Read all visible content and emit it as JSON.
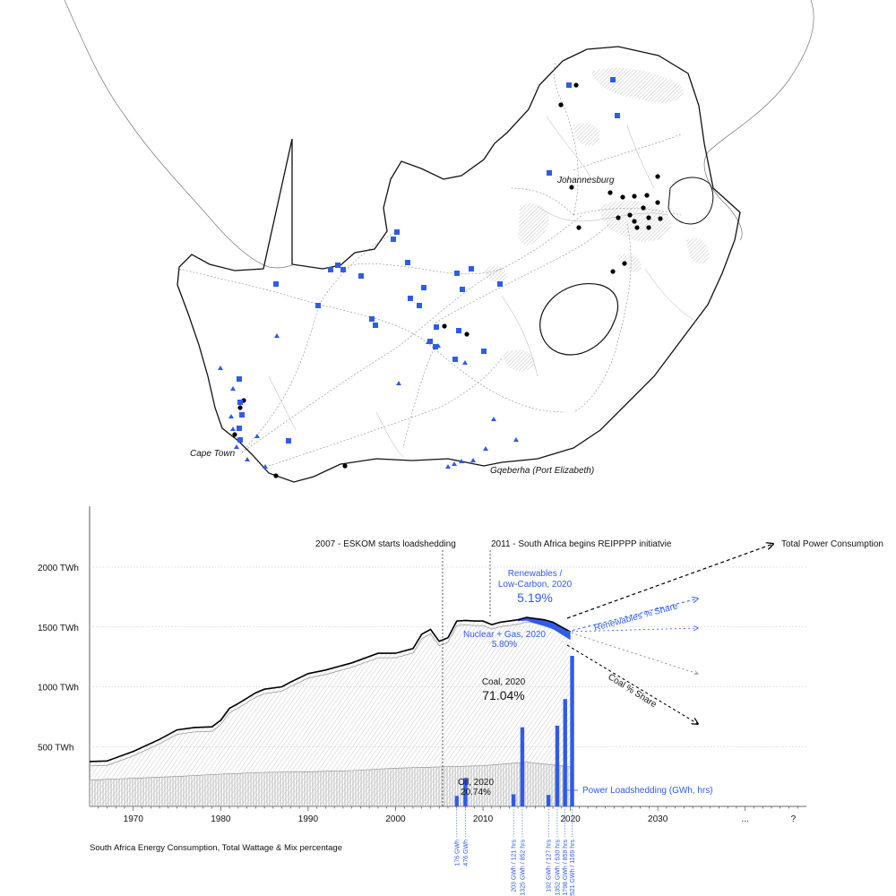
{
  "map": {
    "cities": [
      "Johannesburg",
      "Cape Town",
      "Gqeberha (Port Elizabeth)"
    ],
    "legend_symbols": {
      "coal_or_thermal_plant": "black-dot",
      "solar_or_pv_site": "blue-square",
      "wind_site": "blue-triangle"
    },
    "colors": {
      "border": "#111111",
      "plant": "#000000",
      "renewable": "#2f5be8",
      "roads": "#8a8a8a",
      "mining_hatch": "#bbbbbb"
    }
  },
  "chart_data": {
    "type": "area",
    "caption": "South Africa Energy Consumption, Total Wattage & Mix percentage",
    "y_ticks": [
      "2000 TWh",
      "1500 TWh",
      "1000 TWh",
      "500 TWh"
    ],
    "y_tick_values": [
      2000,
      1500,
      1000,
      500
    ],
    "x_ticks": [
      "1970",
      "1980",
      "1990",
      "2000",
      "2010",
      "2020",
      "2030",
      "...",
      "?"
    ],
    "xlim": [
      1965,
      2047
    ],
    "ylim": [
      0,
      2500
    ],
    "total_consumption": {
      "x": [
        1965,
        1967,
        1970,
        1973,
        1975,
        1977,
        1979,
        1980,
        1981,
        1982,
        1984,
        1985,
        1987,
        1988,
        1990,
        1992,
        1995,
        1998,
        2000,
        2002,
        2003,
        2004,
        2005,
        2006,
        2007,
        2008,
        2009,
        2010,
        2011,
        2012,
        2013,
        2014,
        2015,
        2016,
        2017,
        2018,
        2019,
        2020
      ],
      "y": [
        375,
        380,
        460,
        560,
        640,
        660,
        665,
        720,
        820,
        860,
        950,
        980,
        1000,
        1040,
        1110,
        1140,
        1200,
        1280,
        1280,
        1320,
        1440,
        1480,
        1380,
        1410,
        1550,
        1555,
        1550,
        1550,
        1520,
        1540,
        1550,
        1560,
        1580,
        1570,
        1560,
        1540,
        1500,
        1460
      ]
    },
    "oil_band": {
      "x": [
        1965,
        1970,
        1975,
        1980,
        1985,
        1990,
        1995,
        2000,
        2005,
        2010,
        2015,
        2020
      ],
      "y": [
        220,
        235,
        250,
        270,
        285,
        290,
        300,
        320,
        330,
        340,
        370,
        330
      ]
    },
    "annotations": [
      {
        "year": 2006,
        "text": "2007 - ESKOM starts loadshedding"
      },
      {
        "year": 2011,
        "text": "2011 - South Africa begins REIPPPP initiatvie"
      }
    ],
    "mix_labels": {
      "renewables_title": "Renewables /",
      "renewables_title2": "Low-Carbon, 2020",
      "renewables_value": "5.19%",
      "nuclear_title": "Nuclear + Gas, 2020",
      "nuclear_value": "5.80%",
      "coal_title": "Coal, 2020",
      "coal_value": "71.04%",
      "oil_title": "Oil, 2020",
      "oil_value": "20.74%"
    },
    "projection_labels": {
      "total": "Total Power Consumption",
      "renewables": "Renewables % Share",
      "coal": "Coal % Share"
    },
    "loadshedding": {
      "label": "Power Loadshedding (GWh, hrs)",
      "bars": [
        {
          "year": 2007.0,
          "value": 176,
          "text": "176 GWh"
        },
        {
          "year": 2008.0,
          "value": 476,
          "text": "476 GWh"
        },
        {
          "year": 2013.5,
          "value": 203,
          "text": "203 GWh / 121 hrs"
        },
        {
          "year": 2014.5,
          "value": 1325,
          "text": "1325 GWh / 852 hrs"
        },
        {
          "year": 2017.5,
          "value": 192,
          "text": "192 GWh / 127 hrs"
        },
        {
          "year": 2018.5,
          "value": 1352,
          "text": "1352 GWh / 530 hrs"
        },
        {
          "year": 2019.4,
          "value": 1798,
          "text": "1798 GWh / 859 hrs"
        },
        {
          "year": 2020.2,
          "value": 2521,
          "text": "2521 GWh / 1169 hrs"
        }
      ]
    },
    "colors": {
      "total_line": "#000000",
      "renewables": "#2f5be8",
      "hatch": "#c9c9c9",
      "grid": "#bdbdbd"
    }
  }
}
